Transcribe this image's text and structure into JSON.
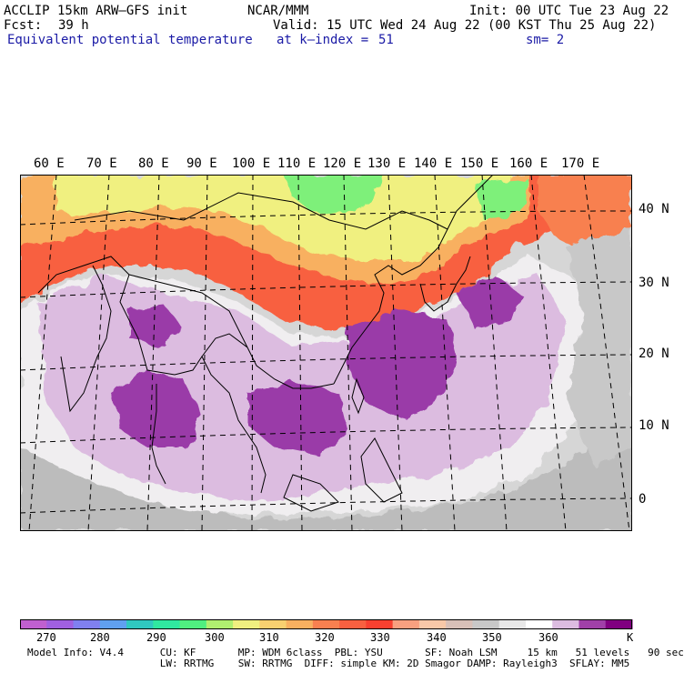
{
  "header": {
    "model": "ACCLIP 15km ARW–GFS init",
    "center": "NCAR/MMM",
    "init": "Init: 00 UTC Tue 23 Aug 22",
    "fcst_label": "Fcst:",
    "fcst_value": "39 h",
    "valid": "Valid: 15 UTC Wed 24 Aug 22 (00 KST Thu 25 Aug 22)",
    "field": "Equivalent potential temperature",
    "level": "at k–index =",
    "level_value": "51",
    "smooth": "sm= 2"
  },
  "map": {
    "lon_labels": [
      "60 E",
      "70 E",
      "80 E",
      "90 E",
      "100 E",
      "110 E",
      "120 E",
      "130 E",
      "140 E",
      "150 E",
      "160 E",
      "170 E"
    ],
    "lat_labels": [
      "40 N",
      "30 N",
      "20 N",
      "10 N",
      "0"
    ]
  },
  "colorbar": {
    "colors": [
      "#c060d0",
      "#a060e0",
      "#8080f0",
      "#60a0f0",
      "#30c8c0",
      "#30e8a0",
      "#50f080",
      "#b0f070",
      "#f0f080",
      "#f8d070",
      "#f8b060",
      "#f88050",
      "#f86040",
      "#f84030",
      "#f8a080",
      "#f8c8a8",
      "#d8c0b8",
      "#c8c8c8",
      "#e8e8e8",
      "#ffffff",
      "#dcbce0",
      "#a040a8",
      "#800080"
    ],
    "ticks": [
      "270",
      "280",
      "290",
      "300",
      "310",
      "320",
      "330",
      "340",
      "350",
      "360"
    ],
    "unit": "K"
  },
  "footer": {
    "line1": "Model Info: V4.4      CU: KF       MP: WDM 6class  PBL: YSU       SF: Noah LSM     15 km   51 levels   90 sec",
    "line2": "                      LW: RRTMG    SW: RRTMG  DIFF: simple KM: 2D Smagor DAMP: Rayleigh3  SFLAY: MM5"
  },
  "colors": {
    "label_blue": "#1a1aa6",
    "map_background": "#d6d6d6"
  }
}
